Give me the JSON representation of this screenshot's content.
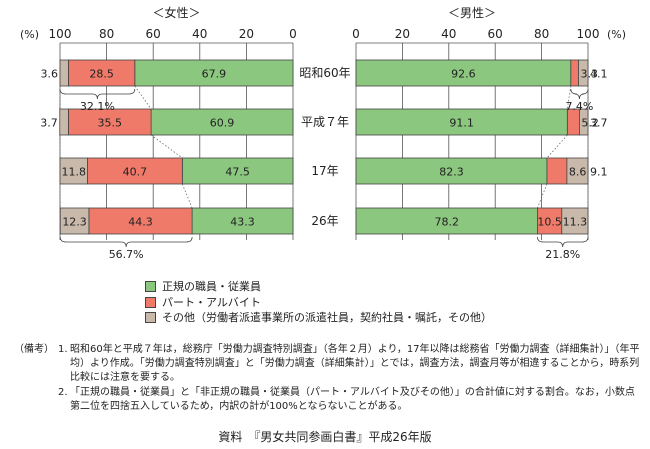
{
  "chart_data": [
    {
      "type": "bar",
      "title": "＜女性＞",
      "unit_label": "(%)",
      "axis_direction": "reversed",
      "xlim": [
        0,
        100
      ],
      "xticks": [
        "100",
        "80",
        "60",
        "40",
        "20",
        "0"
      ],
      "categories": [
        "昭和60年",
        "平成７年",
        "17年",
        "26年"
      ],
      "series": [
        {
          "name": "正規の職員・従業員",
          "values": [
            67.9,
            60.9,
            47.5,
            43.3
          ],
          "color": "#8cc77f"
        },
        {
          "name": "パート・アルバイト",
          "values": [
            28.5,
            35.5,
            40.7,
            44.3
          ],
          "color": "#f07a6a"
        },
        {
          "name": "その他（労働者派遣事業所の派遣社員，契約社員・嘱託，その他）",
          "values": [
            3.6,
            3.7,
            11.8,
            12.3
          ],
          "color": "#c9b9aa"
        }
      ],
      "annotations": [
        "32.1%",
        "56.7%"
      ]
    },
    {
      "type": "bar",
      "title": "＜男性＞",
      "unit_label": "(%)",
      "xlim": [
        0,
        100
      ],
      "xticks": [
        "0",
        "20",
        "40",
        "60",
        "80",
        "100"
      ],
      "categories": [
        "昭和60年",
        "平成７年",
        "17年",
        "26年"
      ],
      "series": [
        {
          "name": "正規の職員・従業員",
          "values": [
            92.6,
            91.1,
            82.3,
            78.2
          ],
          "color": "#8cc77f"
        },
        {
          "name": "パート・アルバイト",
          "values": [
            3.3,
            5.2,
            8.6,
            10.5
          ],
          "color": "#f07a6a"
        },
        {
          "name": "その他（労働者派遣事業所の派遣社員，契約社員・嘱託，その他）",
          "values": [
            4.1,
            3.7,
            9.1,
            11.3
          ],
          "color": "#c9b9aa"
        }
      ],
      "annotations": [
        "7.4%",
        "21.8%"
      ]
    }
  ],
  "legend": [
    {
      "label": "正規の職員・従業員",
      "color": "#8cc77f"
    },
    {
      "label": "パート・アルバイト",
      "color": "#f07a6a"
    },
    {
      "label": "その他（労働者派遣事業所の派遣社員，契約社員・嘱託，その他）",
      "color": "#c9b9aa"
    }
  ],
  "notes": {
    "head": "（備考）",
    "items": [
      {
        "num": "1.",
        "text": "昭和60年と平成７年は，総務庁「労働力調査特別調査」（各年２月）より，17年以降は総務省「労働力調査（詳細集計）」（年平均）より作成。「労働力調査特別調査」と「労働力調査（詳細集計）」とでは，調査方法，調査月等が相違することから，時系列比較には注意を要する。"
      },
      {
        "num": "2.",
        "text": "「正規の職員・従業員」と「非正規の職員・従業員（パート・アルバイト及びその他）」の合計値に対する割合。なお，小数点第二位を四捨五入しているため，内訳の計が100%とならないことがある。"
      }
    ]
  },
  "source": "資料　『男女共同参画白書』平成26年版"
}
